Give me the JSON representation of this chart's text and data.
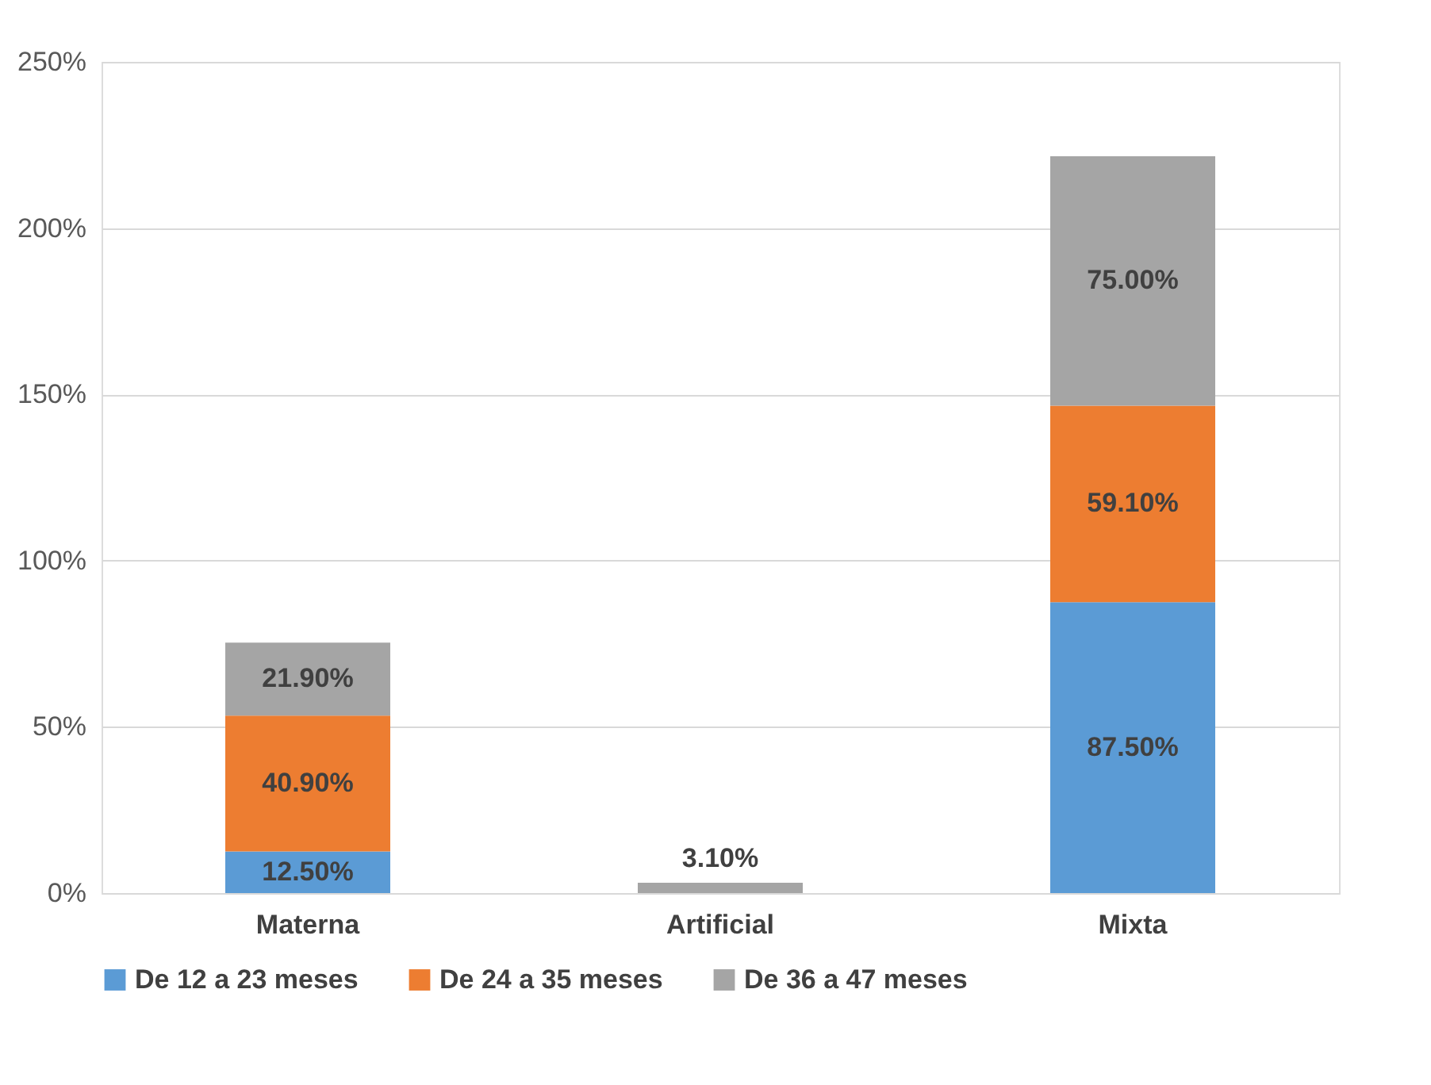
{
  "chart_data": {
    "type": "bar",
    "stacked": true,
    "categories": [
      "Materna",
      "Artificial",
      "Mixta"
    ],
    "series": [
      {
        "name": "De 12 a 23 meses",
        "color": "#5b9bd5",
        "values": [
          12.5,
          null,
          87.5
        ],
        "value_labels": [
          "12.50%",
          null,
          "87.50%"
        ]
      },
      {
        "name": "De 24 a 35 meses",
        "color": "#ed7d31",
        "values": [
          40.9,
          null,
          59.1
        ],
        "value_labels": [
          "40.90%",
          null,
          "59.10%"
        ]
      },
      {
        "name": "De 36 a 47 meses",
        "color": "#a5a5a5",
        "values": [
          21.9,
          3.1,
          75.0
        ],
        "value_labels": [
          "21.90%",
          "3.10%",
          "75.00%"
        ]
      }
    ],
    "ylim": [
      0,
      250
    ],
    "yticks": [
      {
        "value": 0,
        "label": "0%"
      },
      {
        "value": 50,
        "label": "50%"
      },
      {
        "value": 100,
        "label": "100%"
      },
      {
        "value": 150,
        "label": "150%"
      },
      {
        "value": 200,
        "label": "200%"
      },
      {
        "value": 250,
        "label": "250%"
      }
    ],
    "grid": "y",
    "legend": "bottom"
  }
}
